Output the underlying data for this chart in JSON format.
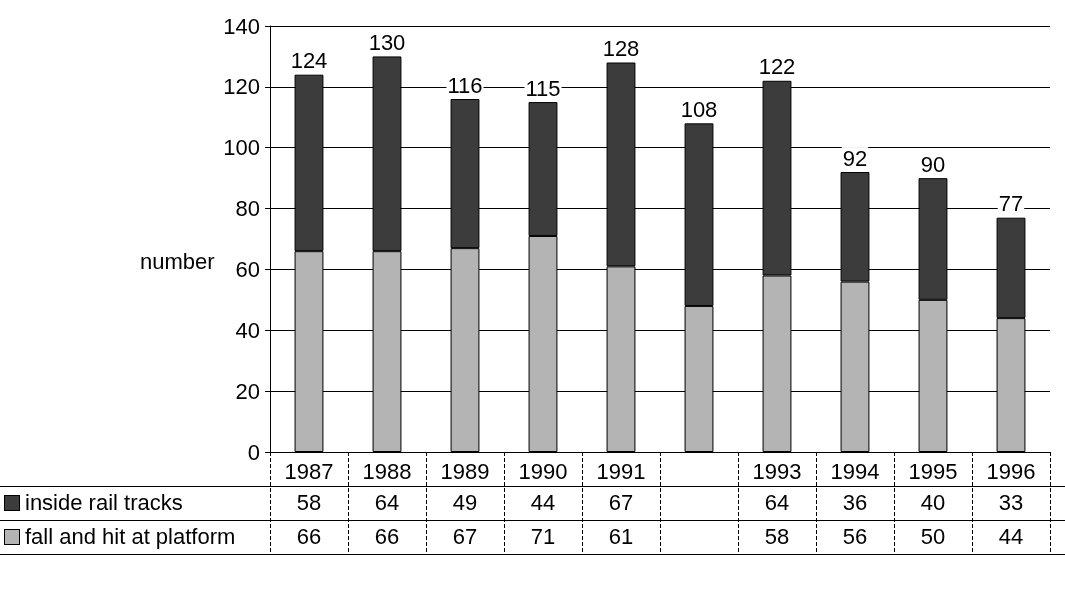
{
  "chart_data": {
    "type": "bar",
    "stacked": true,
    "ylabel": "number",
    "categories": [
      "1987",
      "1988",
      "1989",
      "1990",
      "1991",
      null,
      "1993",
      "1994",
      "1995",
      "1996"
    ],
    "series": [
      {
        "name": "fall and hit at platform",
        "color": "#b4b4b4",
        "values": [
          66,
          66,
          67,
          71,
          61,
          48,
          58,
          56,
          50,
          44
        ],
        "value_labels": [
          "66",
          "66",
          "67",
          "71",
          "61",
          null,
          "58",
          "56",
          "50",
          "44"
        ]
      },
      {
        "name": "inside rail tracks",
        "color": "#3c3c3c",
        "values": [
          58,
          64,
          49,
          44,
          67,
          60,
          64,
          36,
          40,
          33
        ],
        "value_labels": [
          "58",
          "64",
          "49",
          "44",
          "67",
          null,
          "64",
          "36",
          "40",
          "33"
        ]
      }
    ],
    "totals": [
      "124",
      "130",
      "116",
      "115",
      "128",
      "108",
      "122",
      "92",
      "90",
      "77"
    ],
    "ylim": [
      0,
      140
    ],
    "yticks": [
      0,
      20,
      40,
      60,
      80,
      100,
      120,
      140
    ],
    "grid": "y",
    "legend": "bottom left"
  }
}
